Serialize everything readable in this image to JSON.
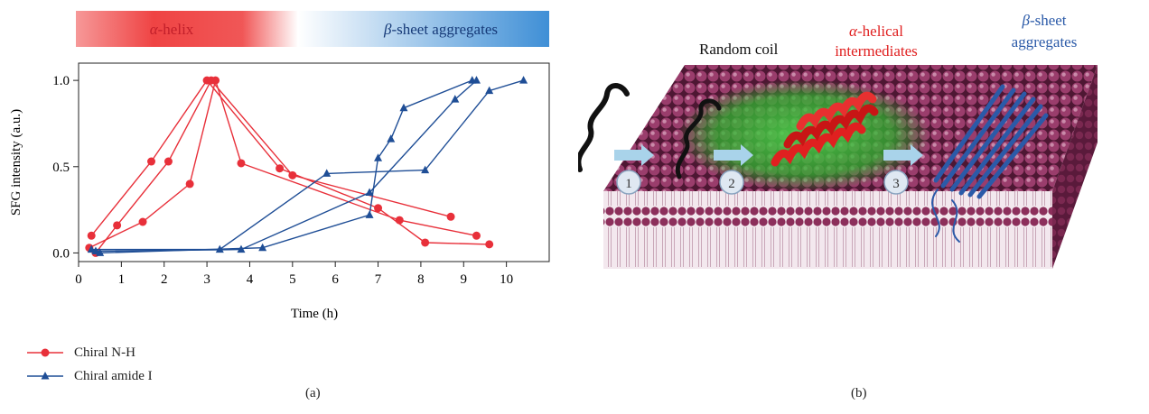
{
  "panel_a": {
    "label": "(a)",
    "band_left": "α-helix",
    "band_left_greek": "α",
    "band_left_rest": "-helix",
    "band_right_greek": "β",
    "band_right_rest": "-sheet aggregates",
    "colors": {
      "red": "#e8303a",
      "blue": "#1f4e96",
      "band_red": "#ef4444",
      "band_blue": "#3f8fd6"
    }
  },
  "chart_data": {
    "type": "line",
    "xlabel": "Time (h)",
    "ylabel": "SFG intensity (a.u.)",
    "xlim": [
      0,
      11
    ],
    "ylim": [
      -0.05,
      1.1
    ],
    "xticks": [
      "0",
      "1",
      "2",
      "3",
      "4",
      "5",
      "6",
      "7",
      "8",
      "9",
      "10"
    ],
    "yticks": [
      "0.0",
      "0.5",
      "1.0"
    ],
    "grid": false,
    "legend_placement": "below",
    "series": [
      {
        "name": "Chiral N-H",
        "marker": "circle",
        "color": "#e8303a",
        "traces": [
          [
            [
              0.3,
              0.1
            ],
            [
              1.7,
              0.53
            ],
            [
              3.0,
              1.0
            ],
            [
              4.7,
              0.49
            ],
            [
              7.0,
              0.26
            ],
            [
              8.1,
              0.06
            ],
            [
              9.6,
              0.05
            ]
          ],
          [
            [
              0.4,
              0.0
            ],
            [
              0.9,
              0.16
            ],
            [
              2.1,
              0.53
            ],
            [
              3.1,
              1.0
            ],
            [
              5.0,
              0.45
            ],
            [
              8.7,
              0.21
            ]
          ],
          [
            [
              0.25,
              0.03
            ],
            [
              1.5,
              0.18
            ],
            [
              2.6,
              0.4
            ],
            [
              3.2,
              1.0
            ],
            [
              3.8,
              0.52
            ],
            [
              7.5,
              0.19
            ],
            [
              9.3,
              0.1
            ]
          ]
        ]
      },
      {
        "name": "Chiral amide I",
        "marker": "triangle",
        "color": "#1f4e96",
        "traces": [
          [
            [
              0.3,
              0.02
            ],
            [
              3.3,
              0.02
            ],
            [
              5.8,
              0.46
            ],
            [
              8.1,
              0.48
            ],
            [
              9.6,
              0.94
            ],
            [
              10.4,
              1.0
            ]
          ],
          [
            [
              0.4,
              0.01
            ],
            [
              3.8,
              0.02
            ],
            [
              6.8,
              0.35
            ],
            [
              8.8,
              0.89
            ],
            [
              9.3,
              1.0
            ]
          ],
          [
            [
              0.5,
              0.0
            ],
            [
              4.3,
              0.03
            ],
            [
              6.8,
              0.22
            ],
            [
              7.0,
              0.55
            ],
            [
              7.3,
              0.66
            ],
            [
              7.6,
              0.84
            ],
            [
              9.2,
              1.0
            ]
          ]
        ]
      }
    ]
  },
  "panel_b": {
    "label": "(b)",
    "random_coil": "Random coil",
    "helical_greek": "α",
    "helical_rest": "-helical",
    "helical_line2": "intermediates",
    "sheet_greek": "β",
    "sheet_rest": "-sheet",
    "sheet_line2": "aggregates",
    "steps": [
      "1",
      "2",
      "3"
    ],
    "colors": {
      "membrane": "#6e1f45",
      "green": "#35b035",
      "helix": "#e02020",
      "sheet": "#2b5aa8",
      "arrow": "#a9d3ea"
    }
  }
}
